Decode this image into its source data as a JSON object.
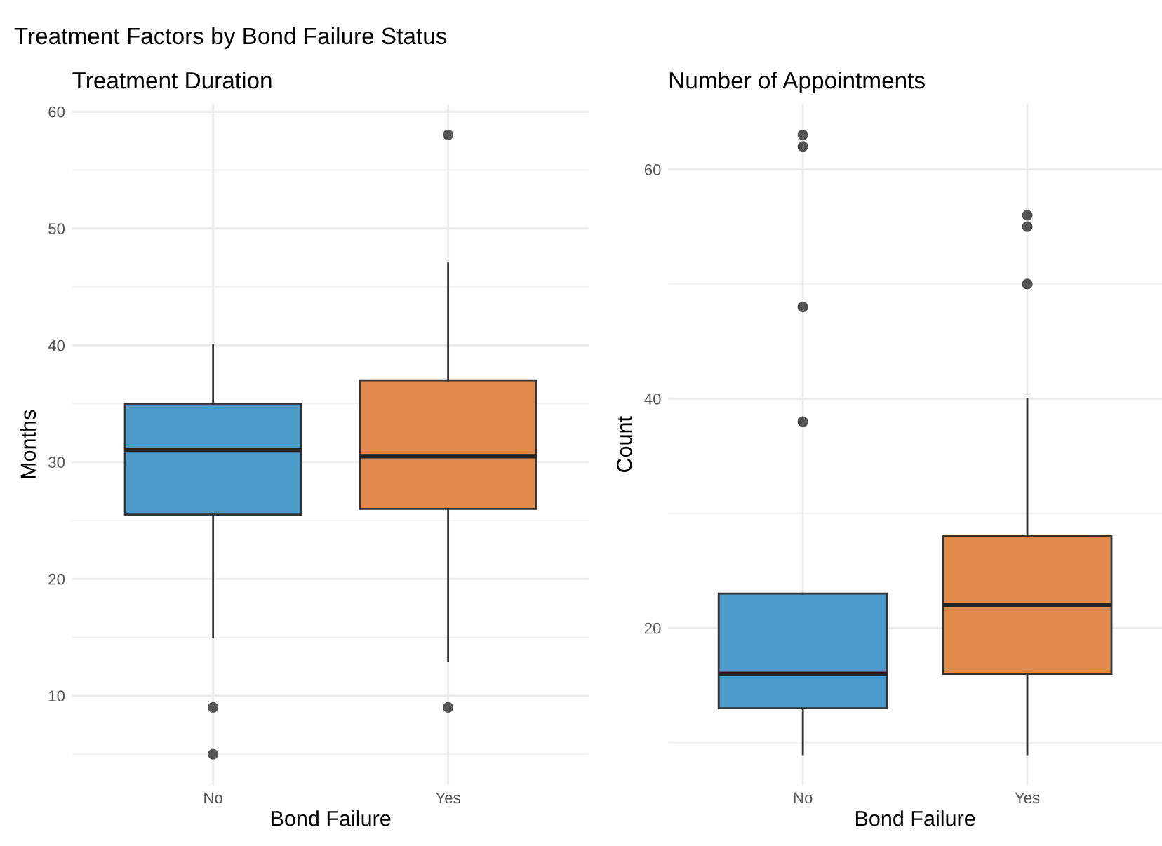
{
  "chart_data": [
    {
      "type": "box",
      "title": "Treatment Factors by Bond Failure Status",
      "subtitle": "Treatment Duration",
      "xlabel": "Bond Failure",
      "ylabel": "Months",
      "categories": [
        "No",
        "Yes"
      ],
      "colors": [
        "#4a9bc9",
        "#e0894a"
      ],
      "grid": true,
      "ylim": [
        2.35,
        60.65
      ],
      "yticks": [
        10,
        20,
        30,
        40,
        50,
        60
      ],
      "boxes": [
        {
          "low": 15,
          "q1": 25.5,
          "median": 31,
          "q3": 35,
          "high": 40,
          "outliers": [
            9,
            5
          ]
        },
        {
          "low": 13,
          "q1": 26,
          "median": 30.5,
          "q3": 37,
          "high": 47,
          "outliers": [
            58,
            9
          ]
        }
      ]
    },
    {
      "type": "box",
      "subtitle": "Number of Appointments",
      "xlabel": "Bond Failure",
      "ylabel": "Count",
      "categories": [
        "No",
        "Yes"
      ],
      "colors": [
        "#4a9bc9",
        "#e0894a"
      ],
      "grid": true,
      "ylim": [
        6.3,
        65.7
      ],
      "yticks": [
        20,
        40,
        60
      ],
      "boxes": [
        {
          "low": 9,
          "q1": 13,
          "median": 16,
          "q3": 23,
          "high": 23,
          "outliers": [
            63,
            62,
            48,
            38
          ]
        },
        {
          "low": 9,
          "q1": 16,
          "median": 22,
          "q3": 28,
          "high": 40,
          "outliers": [
            56,
            55,
            50
          ]
        }
      ]
    }
  ]
}
